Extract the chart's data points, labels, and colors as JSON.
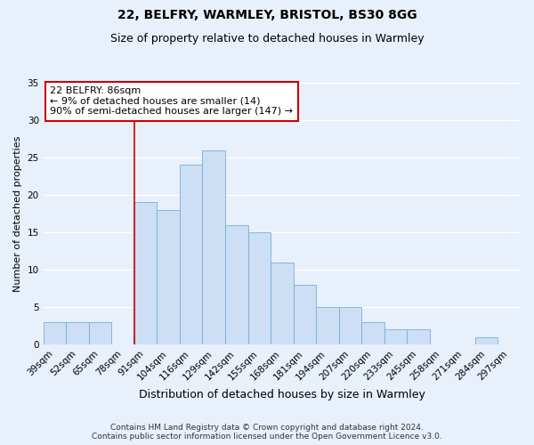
{
  "title": "22, BELFRY, WARMLEY, BRISTOL, BS30 8GG",
  "subtitle": "Size of property relative to detached houses in Warmley",
  "xlabel": "Distribution of detached houses by size in Warmley",
  "ylabel": "Number of detached properties",
  "bin_labels": [
    "39sqm",
    "52sqm",
    "65sqm",
    "78sqm",
    "91sqm",
    "104sqm",
    "116sqm",
    "129sqm",
    "142sqm",
    "155sqm",
    "168sqm",
    "181sqm",
    "194sqm",
    "207sqm",
    "220sqm",
    "233sqm",
    "245sqm",
    "258sqm",
    "271sqm",
    "284sqm",
    "297sqm"
  ],
  "bar_values": [
    3,
    3,
    3,
    0,
    19,
    18,
    24,
    26,
    16,
    15,
    11,
    8,
    5,
    5,
    3,
    2,
    2,
    0,
    0,
    1,
    0
  ],
  "bar_color": "#ccdff5",
  "bar_edge_color": "#7aadd4",
  "background_color": "#e8f0fb",
  "grid_color": "#ffffff",
  "ylim": [
    0,
    35
  ],
  "yticks": [
    0,
    5,
    10,
    15,
    20,
    25,
    30,
    35
  ],
  "vline_x_index": 4,
  "vline_color": "#cc0000",
  "annotation_title": "22 BELFRY: 86sqm",
  "annotation_line1": "← 9% of detached houses are smaller (14)",
  "annotation_line2": "90% of semi-detached houses are larger (147) →",
  "annotation_box_color": "#ffffff",
  "annotation_box_edge": "#cc0000",
  "footer1": "Contains HM Land Registry data © Crown copyright and database right 2024.",
  "footer2": "Contains public sector information licensed under the Open Government Licence v3.0.",
  "title_fontsize": 10,
  "subtitle_fontsize": 9,
  "xlabel_fontsize": 9,
  "ylabel_fontsize": 8,
  "tick_fontsize": 7.5,
  "annotation_fontsize": 8,
  "footer_fontsize": 6.5
}
